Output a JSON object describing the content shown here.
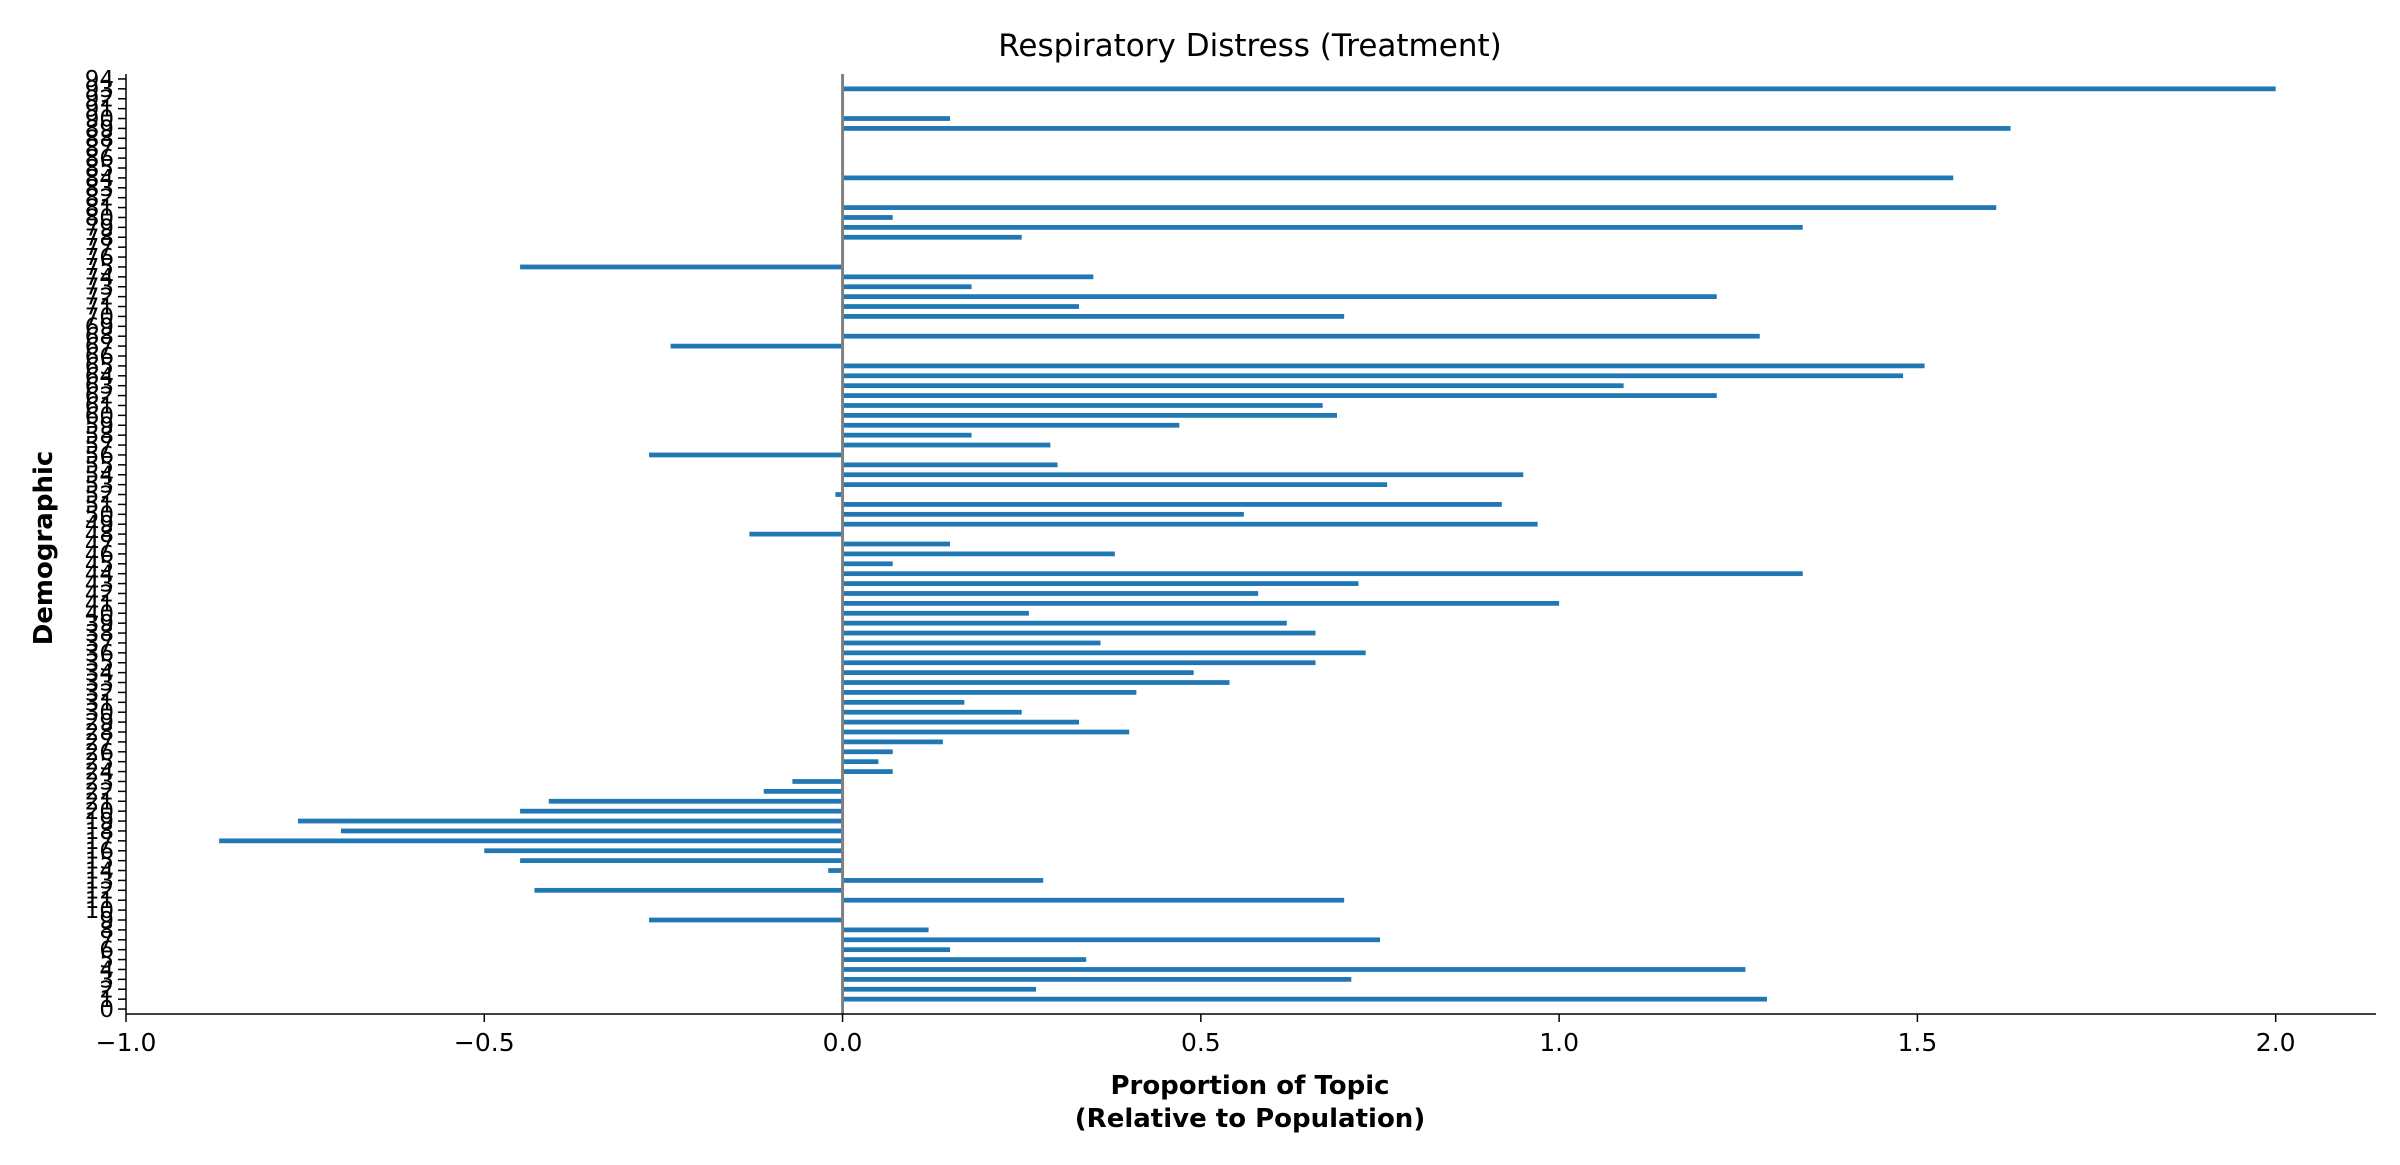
{
  "chart_data": {
    "type": "bar",
    "orientation": "horizontal",
    "title": "Respiratory Distress (Treatment)",
    "xlabel_line1": "Proportion of Topic",
    "xlabel_line2": "(Relative to Population)",
    "ylabel": "Demographic",
    "xlim": [
      -1.0,
      2.14
    ],
    "ylim": [
      -0.5,
      94.5
    ],
    "xticks": [
      -1.0,
      -0.5,
      0.0,
      0.5,
      1.0,
      1.5,
      2.0
    ],
    "xtick_labels": [
      "−1.0",
      "−0.5",
      "0.0",
      "0.5",
      "1.0",
      "1.5",
      "2.0"
    ],
    "zero_line": true,
    "grid": false,
    "legend": "none",
    "bar_color": "#1f77b4",
    "zero_line_color": "#808080",
    "categories": [
      "0",
      "1",
      "2",
      "3",
      "4",
      "5",
      "6",
      "7",
      "8",
      "9",
      "10",
      "11",
      "12",
      "13",
      "14",
      "15",
      "16",
      "17",
      "18",
      "19",
      "20",
      "21",
      "22",
      "23",
      "24",
      "25",
      "26",
      "27",
      "28",
      "29",
      "30",
      "31",
      "32",
      "33",
      "34",
      "35",
      "36",
      "37",
      "38",
      "39",
      "40",
      "41",
      "42",
      "43",
      "44",
      "45",
      "46",
      "47",
      "48",
      "49",
      "50",
      "51",
      "52",
      "53",
      "54",
      "55",
      "56",
      "57",
      "58",
      "59",
      "60",
      "61",
      "62",
      "63",
      "64",
      "65",
      "66",
      "67",
      "68",
      "69",
      "70",
      "71",
      "72",
      "73",
      "74",
      "75",
      "76",
      "77",
      "78",
      "79",
      "80",
      "81",
      "82",
      "83",
      "84",
      "85",
      "86",
      "87",
      "88",
      "89",
      "90",
      "91",
      "92",
      "93",
      "94"
    ],
    "values": [
      0,
      1.29,
      0.27,
      0.71,
      1.26,
      0.34,
      0.15,
      0.75,
      0.12,
      -0.27,
      0,
      0.7,
      -0.43,
      0.28,
      -0.02,
      -0.45,
      -0.5,
      -0.87,
      -0.7,
      -0.76,
      -0.45,
      -0.41,
      -0.11,
      -0.07,
      0.07,
      0.05,
      0.07,
      0.14,
      0.4,
      0.33,
      0.25,
      0.17,
      0.41,
      0.54,
      0.49,
      0.66,
      0.73,
      0.36,
      0.66,
      0.62,
      0.26,
      1.0,
      0.58,
      0.72,
      1.34,
      0.07,
      0.38,
      0.15,
      -0.13,
      0.97,
      0.56,
      0.92,
      -0.01,
      0.76,
      0.95,
      0.3,
      -0.27,
      0.29,
      0.18,
      0.47,
      0.69,
      0.67,
      1.22,
      1.09,
      1.48,
      1.51,
      0,
      -0.24,
      1.28,
      0,
      0.7,
      0.33,
      1.22,
      0.18,
      0.35,
      -0.45,
      0,
      0,
      0.25,
      1.34,
      0.07,
      1.61,
      0,
      0,
      1.55,
      0,
      0,
      0,
      0,
      1.63,
      0.15,
      0,
      0,
      2.0,
      0
    ]
  }
}
